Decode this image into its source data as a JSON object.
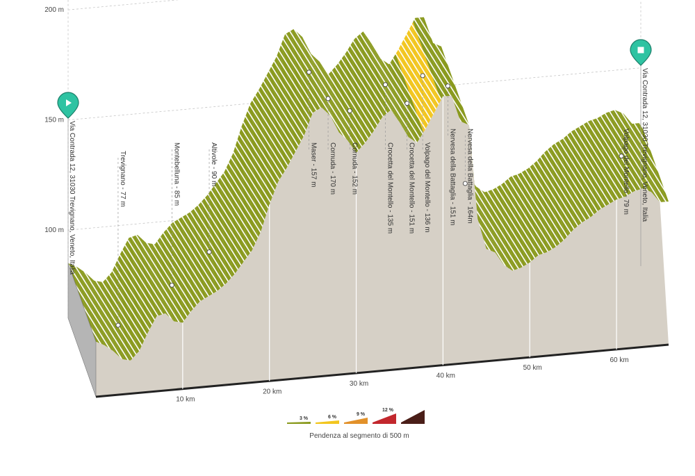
{
  "chart_data": {
    "type": "area",
    "title": "",
    "xlabel": "",
    "ylabel": "",
    "x_unit": "km",
    "y_unit": "m",
    "xlim": [
      0,
      66
    ],
    "ylim": [
      60,
      240
    ],
    "x_ticks": [
      {
        "v": 10,
        "label": "10 km"
      },
      {
        "v": 20,
        "label": "20 km"
      },
      {
        "v": 30,
        "label": "30 km"
      },
      {
        "v": 40,
        "label": "40 km"
      },
      {
        "v": 50,
        "label": "50 km"
      },
      {
        "v": 60,
        "label": "60 km"
      }
    ],
    "y_ticks": [
      {
        "v": 100,
        "label": "100 m"
      },
      {
        "v": 150,
        "label": "150 m"
      },
      {
        "v": 200,
        "label": "200 m"
      }
    ],
    "profile": [
      [
        0,
        85
      ],
      [
        1,
        83
      ],
      [
        2,
        80
      ],
      [
        3,
        76
      ],
      [
        4,
        75
      ],
      [
        5,
        79
      ],
      [
        6,
        87
      ],
      [
        7,
        94
      ],
      [
        8,
        95
      ],
      [
        9,
        91
      ],
      [
        10,
        90
      ],
      [
        11,
        95
      ],
      [
        12,
        99
      ],
      [
        13,
        101
      ],
      [
        14,
        103
      ],
      [
        15,
        106
      ],
      [
        16,
        110
      ],
      [
        17,
        115
      ],
      [
        18,
        120
      ],
      [
        19,
        128
      ],
      [
        20,
        140
      ],
      [
        21,
        150
      ],
      [
        22,
        156
      ],
      [
        23,
        163
      ],
      [
        24,
        170
      ],
      [
        25,
        180
      ],
      [
        26,
        182
      ],
      [
        27,
        178
      ],
      [
        28,
        170
      ],
      [
        29,
        166
      ],
      [
        30,
        160
      ],
      [
        31,
        164
      ],
      [
        32,
        169
      ],
      [
        33,
        175
      ],
      [
        34,
        178
      ],
      [
        35,
        172
      ],
      [
        36,
        165
      ],
      [
        37,
        162
      ],
      [
        38,
        168
      ],
      [
        39,
        175
      ],
      [
        40,
        182
      ],
      [
        41,
        182
      ],
      [
        42,
        170
      ],
      [
        43,
        168
      ],
      [
        44,
        125
      ],
      [
        45,
        111
      ],
      [
        46,
        109
      ],
      [
        47,
        103
      ],
      [
        48,
        100
      ],
      [
        49,
        101
      ],
      [
        50,
        103
      ],
      [
        51,
        106
      ],
      [
        52,
        107
      ],
      [
        53,
        109
      ],
      [
        54,
        112
      ],
      [
        55,
        116
      ],
      [
        56,
        119
      ],
      [
        57,
        121
      ],
      [
        58,
        124
      ],
      [
        59,
        126
      ],
      [
        60,
        128
      ],
      [
        61,
        129
      ],
      [
        62,
        131
      ],
      [
        63,
        132
      ],
      [
        64,
        130
      ],
      [
        65,
        125
      ]
    ],
    "grade_legend": [
      {
        "label": "3 %",
        "color": "#8a9a1e"
      },
      {
        "label": "6 %",
        "color": "#f2c61f"
      },
      {
        "label": "9 %",
        "color": "#e2912a"
      },
      {
        "label": "12 %",
        "color": "#c2272d"
      },
      {
        "label": "",
        "color": "#4a1e18"
      }
    ],
    "legend_caption": "Pendenza al segmento di 500 m",
    "climb_color": "#8a9a1e",
    "steep_color": "#f2c61f",
    "ground_color": "#d6d0c6",
    "start": {
      "km": 0,
      "label": "Via Contrada 12, 31030 Trevignano, Veneto, Italia"
    },
    "finish": {
      "km": 66,
      "label": "Via Contrada 12, 31030 Trevignano, Veneto, Italia"
    },
    "waypoints": [
      {
        "km": 4.0,
        "elev": 77,
        "label": "Trevignano - 77 m"
      },
      {
        "km": 10.2,
        "elev": 85,
        "label": "Montebelluna - 85 m"
      },
      {
        "km": 14.5,
        "elev": 90,
        "label": "Altivole - 90 m"
      },
      {
        "km": 26.0,
        "elev": 157,
        "label": "Maser - 157 m"
      },
      {
        "km": 28.2,
        "elev": 170,
        "label": "Cornuda - 170 m"
      },
      {
        "km": 30.7,
        "elev": 152,
        "label": "Cornuda - 152 m"
      },
      {
        "km": 34.8,
        "elev": 135,
        "label": "Crocetta del Montello - 135 m"
      },
      {
        "km": 37.3,
        "elev": 151,
        "label": "Crocetta del Montello - 151 m"
      },
      {
        "km": 39.1,
        "elev": 136,
        "label": "Volpago del Montello - 136 m"
      },
      {
        "km": 42.0,
        "elev": 151,
        "label": "Nervesa della Battaglia - 151 m"
      },
      {
        "km": 44.0,
        "elev": 164,
        "label": "Nervesa della Battaglia - 164m"
      },
      {
        "km": 62.0,
        "elev": 79,
        "label": "Volpago del Montello - 79 m"
      }
    ]
  }
}
